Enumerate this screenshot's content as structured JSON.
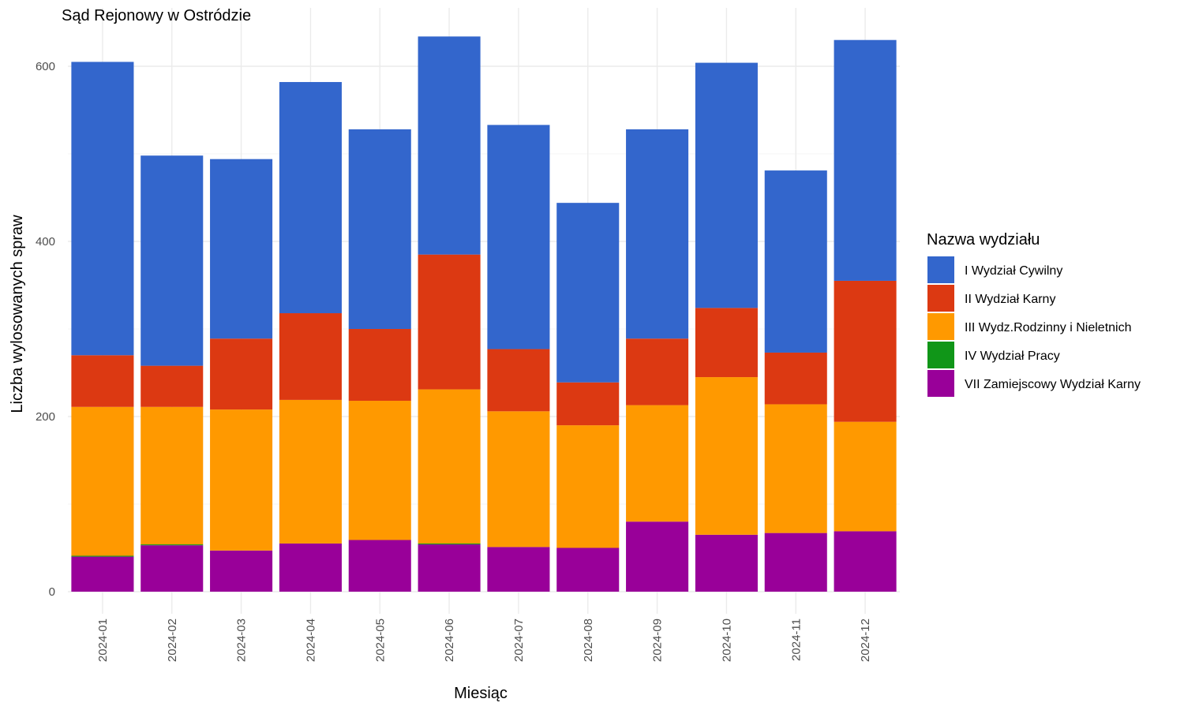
{
  "chart_data": {
    "type": "bar",
    "stacked": true,
    "title": "Sąd Rejonowy w Ostródzie",
    "xlabel": "Miesiąc",
    "ylabel": "Liczba wylosowanych spraw",
    "ylim": [
      -25,
      660
    ],
    "yticks": [
      0,
      200,
      400,
      600
    ],
    "grid": true,
    "categories": [
      "2024-01",
      "2024-02",
      "2024-03",
      "2024-04",
      "2024-05",
      "2024-06",
      "2024-07",
      "2024-08",
      "2024-09",
      "2024-10",
      "2024-11",
      "2024-12"
    ],
    "series": [
      {
        "name": "VII Zamiejscowy Wydział Karny",
        "color": "#990099",
        "values": [
          40,
          53,
          47,
          55,
          59,
          54,
          51,
          50,
          80,
          65,
          67,
          69
        ]
      },
      {
        "name": "IV Wydział Pracy",
        "color": "#109618",
        "values": [
          1,
          1,
          0,
          0,
          0,
          1,
          0,
          0,
          0,
          0,
          0,
          0
        ]
      },
      {
        "name": "III Wydz.Rodzinny i Nieletnich",
        "color": "#FF9900",
        "values": [
          170,
          157,
          161,
          164,
          159,
          176,
          155,
          140,
          133,
          180,
          147,
          125
        ]
      },
      {
        "name": "II Wydział Karny",
        "color": "#DC3912",
        "values": [
          59,
          47,
          81,
          99,
          82,
          154,
          71,
          49,
          76,
          79,
          59,
          161
        ]
      },
      {
        "name": "I Wydział Cywilny",
        "color": "#3366CC",
        "values": [
          335,
          240,
          205,
          264,
          228,
          249,
          256,
          205,
          239,
          280,
          208,
          275
        ]
      }
    ],
    "legend": {
      "title": "Nazwa wydziału",
      "position": "right",
      "order": [
        "I Wydział Cywilny",
        "II Wydział Karny",
        "III Wydz.Rodzinny i Nieletnich",
        "IV Wydział Pracy",
        "VII Zamiejscowy Wydział Karny"
      ]
    }
  }
}
